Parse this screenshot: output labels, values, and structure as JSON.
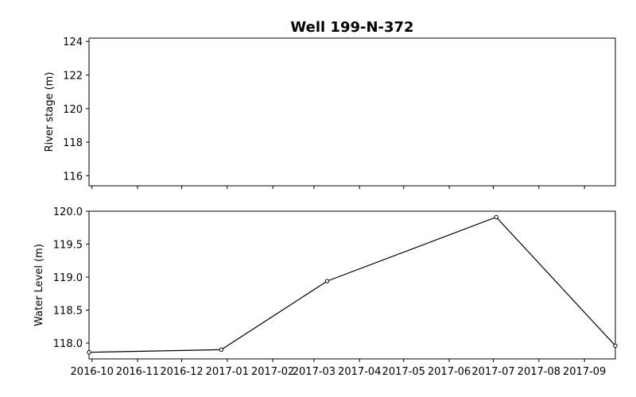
{
  "chart_data": {
    "type": "line",
    "title": "Well 199-N-372",
    "x_tick_labels": [
      "2016-10",
      "2016-11",
      "2016-12",
      "2017-01",
      "2017-02",
      "2017-03",
      "2017-04",
      "2017-05",
      "2017-06",
      "2017-07",
      "2017-08",
      "2017-09"
    ],
    "panels": [
      {
        "ylabel": "River stage (m)",
        "ylim": [
          115.4,
          124.2
        ],
        "y_ticks": [
          116,
          118,
          120,
          122,
          124
        ],
        "series": []
      },
      {
        "ylabel": "Water Level (m)",
        "ylim": [
          117.76,
          120.0
        ],
        "y_ticks": [
          118.0,
          118.5,
          119.0,
          119.5,
          120.0
        ],
        "y_tick_labels": [
          "118.0",
          "118.5",
          "119.0",
          "119.5",
          "120.0"
        ],
        "series": [
          {
            "x": [
              "2016-09-29",
              "2016-12-28",
              "2017-03-10",
              "2017-07-03",
              "2017-09-22"
            ],
            "y": [
              117.86,
              117.9,
              118.94,
              119.91,
              117.96
            ]
          }
        ]
      }
    ],
    "xlim": [
      "2016-09-29",
      "2017-09-22"
    ],
    "grid": false,
    "colors": {
      "line": "#000000",
      "axes": "#000000",
      "background": "#ffffff"
    }
  }
}
